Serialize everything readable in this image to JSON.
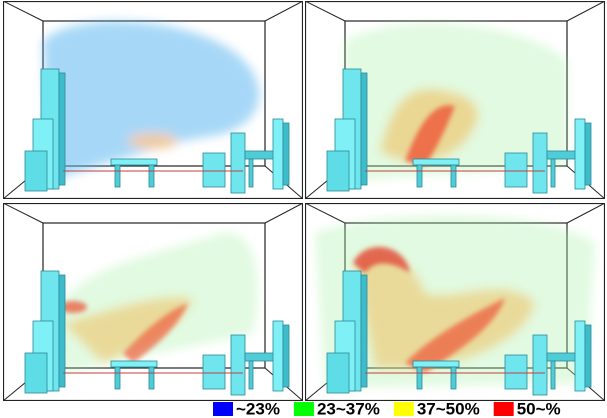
{
  "legend": {
    "items": [
      {
        "label": "~23%",
        "color": "#0000ff"
      },
      {
        "label": "23~37%",
        "color": "#00ff00"
      },
      {
        "label": "37~50%",
        "color": "#ffff00"
      },
      {
        "label": "50~%",
        "color": "#ff0000"
      }
    ]
  }
}
